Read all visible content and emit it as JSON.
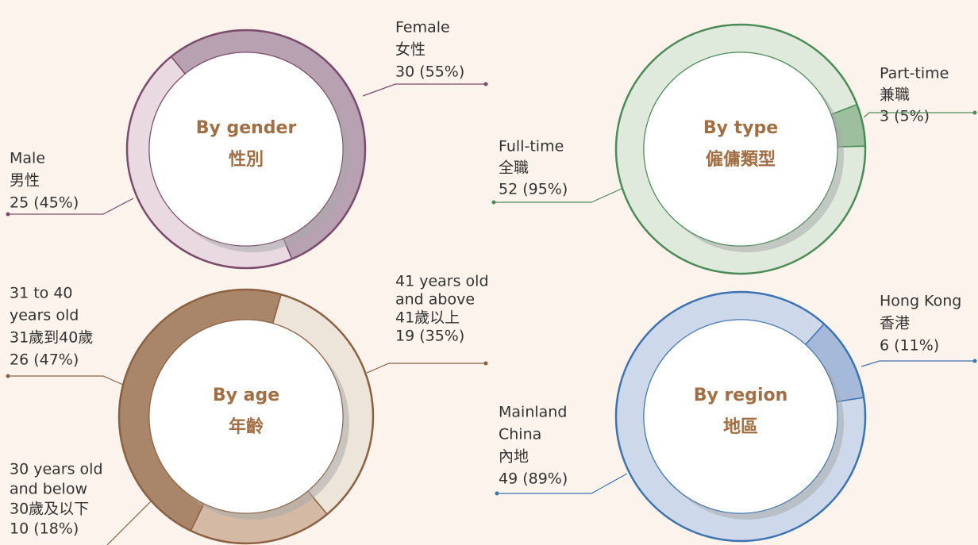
{
  "chart_data": [
    {
      "type": "pie",
      "title": [
        "By gender",
        "性別"
      ],
      "categories": [
        [
          "Female",
          "女性"
        ],
        [
          "Male",
          "男性"
        ]
      ],
      "values": [
        30,
        25
      ],
      "value_labels": [
        "30 (55%)",
        "25 (45%)"
      ],
      "colors": [
        "#b8a1b0",
        "#e9dae2"
      ],
      "edge_color": "#7b4b6c"
    },
    {
      "type": "pie",
      "title": [
        "By type",
        "僱傭類型"
      ],
      "categories": [
        [
          "Part-time",
          "兼職"
        ],
        [
          "Full-time",
          "全職"
        ]
      ],
      "values": [
        3,
        52
      ],
      "value_labels": [
        "3 (5%)",
        "52 (95%)"
      ],
      "colors": [
        "#9dbf9d",
        "#dfeadd"
      ],
      "edge_color": "#4b8b57"
    },
    {
      "type": "pie",
      "title": [
        "By age",
        "年齡"
      ],
      "categories": [
        [
          "41 years old",
          "and above",
          "41歲以上"
        ],
        [
          "30 years old",
          "and below",
          "30歲及以下"
        ],
        [
          "31 to 40",
          "years old",
          "31歲到40歲"
        ]
      ],
      "values": [
        19,
        10,
        26
      ],
      "value_labels": [
        "19 (35%)",
        "10 (18%)",
        "26 (47%)"
      ],
      "colors": [
        "#eee5da",
        "#d4b9a5",
        "#a98569"
      ],
      "edge_color": "#8c6142"
    },
    {
      "type": "pie",
      "title": [
        "By region",
        "地區"
      ],
      "categories": [
        [
          "Hong Kong",
          "香港"
        ],
        [
          "Mainland",
          "China",
          "內地"
        ]
      ],
      "values": [
        6,
        49
      ],
      "value_labels": [
        "6 (11%)",
        "49 (89%)"
      ],
      "colors": [
        "#a5badb",
        "#cdd9eb"
      ],
      "edge_color": "#3d73b1"
    }
  ]
}
